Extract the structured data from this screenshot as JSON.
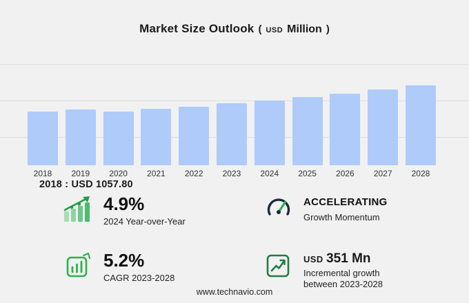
{
  "title": {
    "main": "Market Size Outlook",
    "unit_open": "(",
    "unit_currency": "USD",
    "unit_label": "Million",
    "unit_close": ")"
  },
  "chart_data": {
    "type": "bar",
    "title": "Market Size Outlook (USD Million)",
    "categories": [
      "2018",
      "2019",
      "2020",
      "2021",
      "2022",
      "2023",
      "2024",
      "2025",
      "2026",
      "2027",
      "2028"
    ],
    "values": [
      1057.8,
      1095,
      1062,
      1110,
      1155,
      1217,
      1277,
      1340,
      1402,
      1484,
      1568
    ],
    "xlabel": "",
    "ylabel": "USD Million",
    "ylim": [
      0,
      2300
    ],
    "grid": true,
    "legend": "none",
    "bar_color": "#aecbfa",
    "annotation_2018": "2018 : USD 1057.80"
  },
  "annotation": {
    "text": "2018 : USD 1057.80"
  },
  "stats": {
    "yoy": {
      "value": "4.9%",
      "label": "2024 Year-over-Year",
      "icon": "bar-growth-icon"
    },
    "momentum": {
      "value": "ACCELERATING",
      "label": "Growth Momentum",
      "icon": "gauge-icon"
    },
    "cagr": {
      "value": "5.2%",
      "label": "CAGR 2023-2028",
      "icon": "bar-chart-icon"
    },
    "incremental": {
      "currency": "USD",
      "amount": "351 Mn",
      "label_line1": "Incremental growth",
      "label_line2": "between 2023-2028",
      "icon": "line-growth-icon"
    }
  },
  "colors": {
    "bar": "#aecbfa",
    "green": "#2bb24c",
    "dark_green": "#1f9d44",
    "navy": "#1c2b3a",
    "background": "#f1f1f1"
  },
  "footer": {
    "url": "www.technavio.com"
  }
}
